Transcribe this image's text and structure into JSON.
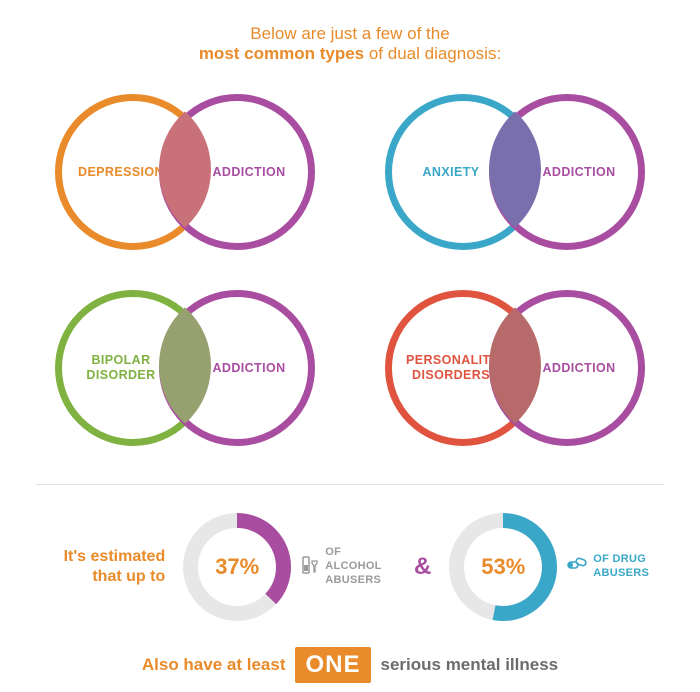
{
  "colors": {
    "orange": "#e98b2a",
    "purple": "#a84da0",
    "teal": "#3aa7c8",
    "green": "#7fb241",
    "red": "#e0543f",
    "gray_text": "#6c6c6c",
    "gray_icon": "#9a9a9a",
    "divider": "#e2e2e2",
    "white": "#ffffff",
    "track": "#e7e7e7",
    "lens1": "#c97179",
    "lens2": "#7a6fad",
    "lens3": "#97a06f",
    "lens4": "#b76a6a"
  },
  "header": {
    "line1": "Below are just a few of the",
    "line2_bold": "most common types",
    "line2_rest": " of dual diagnosis:"
  },
  "venn": {
    "circle_size": 156,
    "border_width": 7,
    "overlap": 52,
    "pairs": [
      {
        "left_label": "DEPRESSION",
        "left_color": "#e98b2a",
        "right_label": "ADDICTION",
        "right_color": "#a84da0",
        "lens_color": "#c97179"
      },
      {
        "left_label": "ANXIETY",
        "left_color": "#3aa7c8",
        "right_label": "ADDICTION",
        "right_color": "#a84da0",
        "lens_color": "#7a6fad"
      },
      {
        "left_label": "BIPOLAR DISORDER",
        "left_color": "#7fb241",
        "right_label": "ADDICTION",
        "right_color": "#a84da0",
        "lens_color": "#97a06f"
      },
      {
        "left_label": "PERSONALITY DISORDERS",
        "left_color": "#e0543f",
        "right_label": "ADDICTION",
        "right_color": "#a84da0",
        "lens_color": "#b76a6a"
      }
    ]
  },
  "stats": {
    "intro": "It's estimated that up to",
    "ampersand": "&",
    "donut_size": 108,
    "donut_thickness": 15,
    "donut1": {
      "percent": 37,
      "pct_label": "37%",
      "arc_color": "#a84da0",
      "track_color": "#e7e7e7",
      "label": "OF ALCOHOL ABUSERS",
      "label_color": "#9a9a9a",
      "icon": "alcohol"
    },
    "donut2": {
      "percent": 53,
      "pct_label": "53%",
      "arc_color": "#3aa7c8",
      "track_color": "#e7e7e7",
      "label": "OF DRUG ABUSERS",
      "label_color": "#3aa7c8",
      "icon": "pills"
    }
  },
  "closing": {
    "before": "Also have at least",
    "badge": "ONE",
    "after": "serious mental illness"
  }
}
